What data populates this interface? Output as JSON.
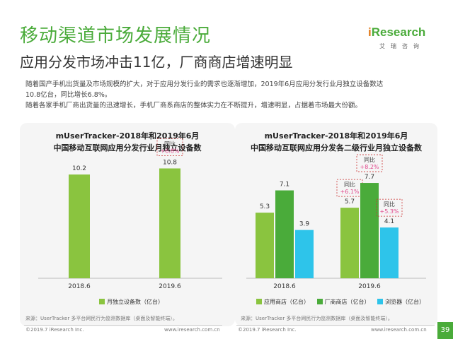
{
  "header": {
    "title": "移动渠道市场发展情况",
    "subtitle": "应用分发市场冲击11亿，厂商商店增速明显",
    "desc_lines": [
      "随着国产手机出货量及市场规模的扩大，对于应用分发行业的需求也逐渐增加，2019年6月应用分发行业月独立设备数达",
      "10.8亿台，同比增长6.8%。",
      "随着各家手机厂商出货量的迅速增长，手机厂商系商店的整体实力在不断提升，增速明显，占据着市场最大份额。"
    ]
  },
  "logo": {
    "brand_i": "i",
    "brand_rest": "Research",
    "cn": "艾瑞咨询"
  },
  "colors": {
    "green": "#8ac43f",
    "deep_green": "#4aab3a",
    "cyan": "#2ec4ea",
    "pink": "#e24a8d",
    "red_dash": "#cc3333"
  },
  "chart_data": [
    {
      "type": "bar",
      "title_lines": [
        "mUserTracker-2018年和2019年6月",
        "中国移动互联网应用分发行业月独立设备数"
      ],
      "categories": [
        "2018.6",
        "2019.6"
      ],
      "series": [
        {
          "name": "月独立设备数（亿台）",
          "values": [
            10.2,
            10.8
          ],
          "color": "#8ac43f"
        }
      ],
      "value_labels": [
        "10.2",
        "10.8"
      ],
      "annotations": [
        {
          "category": "2019.6",
          "line1": "同比",
          "line2": "+6.8%"
        }
      ],
      "ylim": [
        0,
        12.5
      ],
      "legend": "bottom"
    },
    {
      "type": "bar",
      "title_lines": [
        "mUserTracker-2018年和2019年6月",
        "中国移动互联网应用分发各二级行业月独立设备数"
      ],
      "categories": [
        "2018.6",
        "2019.6"
      ],
      "series": [
        {
          "name": "应用商店（亿台）",
          "values": [
            5.3,
            5.7
          ],
          "labels": [
            "5.3",
            "5.7"
          ],
          "color": "#8ac43f"
        },
        {
          "name": "厂商商店（亿台）",
          "values": [
            7.1,
            7.7
          ],
          "labels": [
            "7.1",
            "7.7"
          ],
          "color": "#4aab3a"
        },
        {
          "name": "浏览器（亿台）",
          "values": [
            3.9,
            4.1
          ],
          "labels": [
            "3.9",
            "4.1"
          ],
          "color": "#2ec4ea"
        }
      ],
      "annotations": [
        {
          "series": 0,
          "line1": "同比",
          "line2": "+6.1%"
        },
        {
          "series": 1,
          "line1": "同比",
          "line2": "+8.2%"
        },
        {
          "series": 2,
          "line1": "同比",
          "line2": "+5.3%"
        }
      ],
      "ylim": [
        0,
        9.7
      ],
      "legend": "bottom"
    }
  ],
  "source": {
    "left": "来源：UserTracker 多平台网民行为监测数据库（桌面及智能终端）。",
    "right": "来源：UserTracker 多平台网民行为监测数据库（桌面及智能终端）。"
  },
  "footer": {
    "copyright_left": "©2019.7 iResearch Inc.",
    "url_left": "www.iresearch.com.cn",
    "copyright_right": "©2019.7 iResearch Inc.",
    "url_right": "www.iresearch.com.cn",
    "page": "39"
  }
}
